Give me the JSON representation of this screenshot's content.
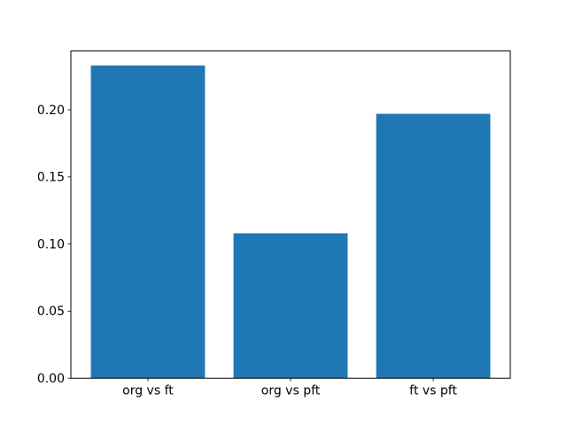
{
  "chart_data": {
    "type": "bar",
    "categories": [
      "org vs ft",
      "org vs pft",
      "ft vs pft"
    ],
    "values": [
      0.233,
      0.108,
      0.197
    ],
    "title": "",
    "xlabel": "",
    "ylabel": "",
    "ylim": [
      0,
      0.2438
    ],
    "yticks": [
      0.0,
      0.05,
      0.1,
      0.15,
      0.2
    ],
    "ytick_labels": [
      "0.00",
      "0.05",
      "0.10",
      "0.15",
      "0.20"
    ],
    "grid": false,
    "legend_position": "none",
    "bar_color": "#1f77b4",
    "axis_color": "#000000",
    "background_color": "#ffffff"
  }
}
